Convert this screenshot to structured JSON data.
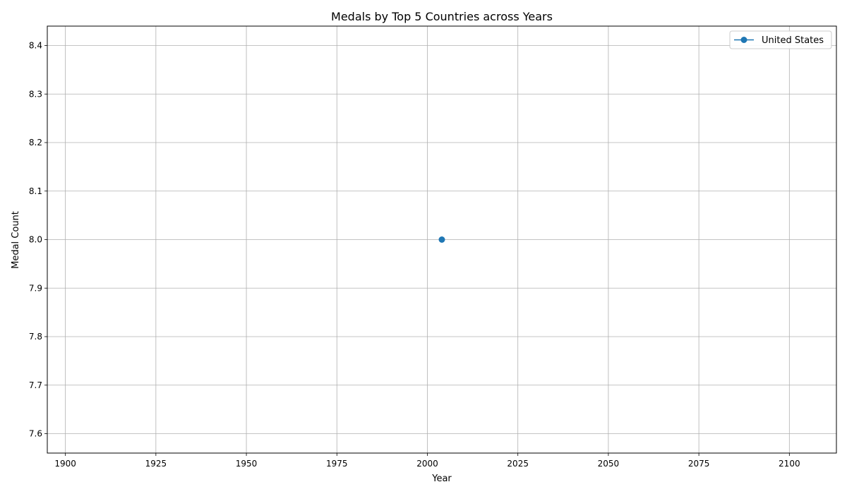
{
  "chart_data": {
    "type": "line",
    "title": "Medals by Top 5 Countries across Years",
    "xlabel": "Year",
    "ylabel": "Medal Count",
    "xlim": [
      1895,
      2113
    ],
    "ylim": [
      7.56,
      8.44
    ],
    "xticks": [
      1900,
      1925,
      1950,
      1975,
      2000,
      2025,
      2050,
      2075,
      2100
    ],
    "yticks": [
      7.6,
      7.7,
      7.8,
      7.9,
      8.0,
      8.1,
      8.2,
      8.3,
      8.4
    ],
    "grid": true,
    "legend_position": "top-right",
    "series": [
      {
        "name": "United States",
        "color": "#1f77b4",
        "marker": "circle",
        "points": [
          {
            "x": 2004,
            "y": 8.0
          }
        ]
      }
    ]
  }
}
